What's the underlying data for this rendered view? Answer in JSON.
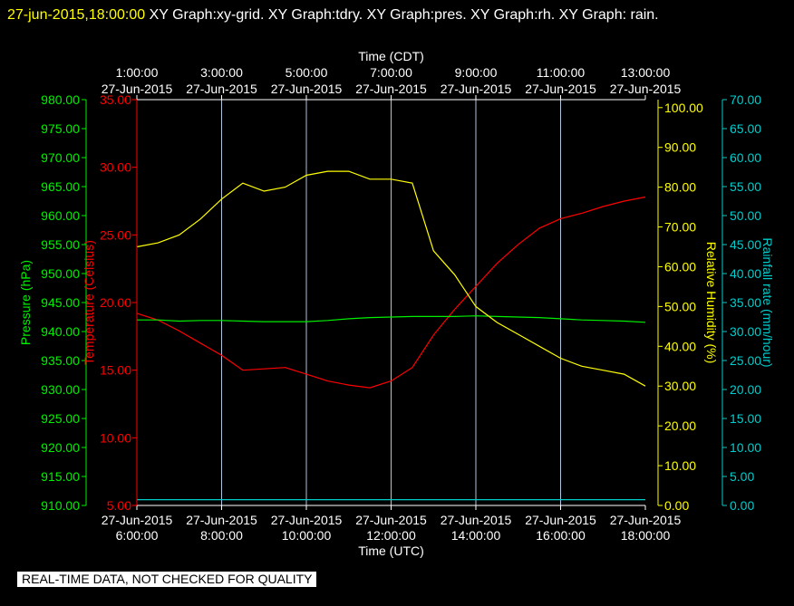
{
  "header": {
    "timestamp": "27-jun-2015,18:00:00",
    "text": "  XY Graph:xy-grid.  XY Graph:tdry.  XY Graph:pres.  XY Graph:rh.  XY Graph: rain."
  },
  "banner": "REAL-TIME DATA, NOT CHECKED FOR QUALITY",
  "colors": {
    "background": "#000000",
    "grid": "#b0c4de",
    "pressure": "#00ee00",
    "temperature": "#ff0000",
    "humidity": "#ffff00",
    "rain": "#00cccc"
  },
  "chart_data": {
    "type": "line",
    "x_bottom": {
      "label": "Time (UTC)",
      "ticks": [
        {
          "date": "27-Jun-2015",
          "time": "6:00:00"
        },
        {
          "date": "27-Jun-2015",
          "time": "8:00:00"
        },
        {
          "date": "27-Jun-2015",
          "time": "10:00:00"
        },
        {
          "date": "27-Jun-2015",
          "time": "12:00:00"
        },
        {
          "date": "27-Jun-2015",
          "time": "14:00:00"
        },
        {
          "date": "27-Jun-2015",
          "time": "16:00:00"
        },
        {
          "date": "27-Jun-2015",
          "time": "18:00:00"
        }
      ],
      "range": [
        "27-Jun-2015 6:00:00",
        "27-Jun-2015 18:00:00"
      ]
    },
    "x_top": {
      "label": "Time (CDT)",
      "ticks": [
        {
          "time": "1:00:00",
          "date": "27-Jun-2015"
        },
        {
          "time": "3:00:00",
          "date": "27-Jun-2015"
        },
        {
          "time": "5:00:00",
          "date": "27-Jun-2015"
        },
        {
          "time": "7:00:00",
          "date": "27-Jun-2015"
        },
        {
          "time": "9:00:00",
          "date": "27-Jun-2015"
        },
        {
          "time": "11:00:00",
          "date": "27-Jun-2015"
        },
        {
          "time": "13:00:00",
          "date": "27-Jun-2015"
        }
      ]
    },
    "axes": {
      "pressure": {
        "label": "Pressure (hPa)",
        "min": 910,
        "max": 980,
        "ticks": [
          "910.00",
          "915.00",
          "920.00",
          "925.00",
          "930.00",
          "935.00",
          "940.00",
          "945.00",
          "950.00",
          "955.00",
          "960.00",
          "965.00",
          "970.00",
          "975.00",
          "980.00"
        ]
      },
      "temperature": {
        "label": "Temperature (Celsius)",
        "min": 5,
        "max": 35,
        "ticks": [
          "5.00",
          "10.00",
          "15.00",
          "20.00",
          "25.00",
          "30.00",
          "35.00"
        ]
      },
      "humidity": {
        "label": "Relative Humidity (%)",
        "min": 0,
        "max": 102,
        "ticks": [
          "0.00",
          "10.00",
          "20.00",
          "30.00",
          "40.00",
          "50.00",
          "60.00",
          "70.00",
          "80.00",
          "90.00",
          "100.00"
        ]
      },
      "rain": {
        "label": "Rainfall rate (mm/hour)",
        "min": 0,
        "max": 70,
        "ticks": [
          "0.00",
          "5.00",
          "10.00",
          "15.00",
          "20.00",
          "25.00",
          "30.00",
          "35.00",
          "40.00",
          "45.00",
          "50.00",
          "55.00",
          "60.00",
          "65.00",
          "70.00"
        ]
      }
    },
    "grid": "vertical",
    "x_hours": [
      6.0,
      6.5,
      7.0,
      7.5,
      8.0,
      8.5,
      9.0,
      9.5,
      10.0,
      10.5,
      11.0,
      11.5,
      12.0,
      12.5,
      13.0,
      13.5,
      14.0,
      14.5,
      15.0,
      15.5,
      16.0,
      16.5,
      17.0,
      17.5,
      18.0
    ],
    "series": [
      {
        "name": "Temperature",
        "axis": "temperature",
        "values": [
          19.2,
          18.7,
          17.9,
          17.0,
          16.1,
          15.0,
          15.1,
          15.2,
          14.7,
          14.2,
          13.9,
          13.7,
          14.2,
          15.2,
          17.6,
          19.5,
          21.2,
          22.9,
          24.3,
          25.5,
          26.2,
          26.6,
          27.1,
          27.5,
          27.8
        ]
      },
      {
        "name": "Pressure",
        "axis": "pressure",
        "values": [
          942.0,
          942.0,
          941.8,
          941.9,
          941.9,
          941.8,
          941.7,
          941.7,
          941.7,
          941.9,
          942.2,
          942.4,
          942.5,
          942.6,
          942.6,
          942.6,
          942.7,
          942.6,
          942.5,
          942.4,
          942.2,
          942.0,
          941.9,
          941.8,
          941.6
        ]
      },
      {
        "name": "Relative Humidity",
        "axis": "humidity",
        "values": [
          65,
          66,
          68,
          72,
          77,
          81,
          79,
          80,
          83,
          84,
          84,
          82,
          82,
          81,
          64,
          58,
          50,
          46,
          43,
          40,
          37,
          35,
          34,
          33,
          30
        ]
      },
      {
        "name": "Rainfall rate",
        "axis": "rain",
        "values": [
          1,
          1,
          1,
          1,
          1,
          1,
          1,
          1,
          1,
          1,
          1,
          1,
          1,
          1,
          1,
          1,
          1,
          1,
          1,
          1,
          1,
          1,
          1,
          1,
          1
        ]
      }
    ]
  }
}
